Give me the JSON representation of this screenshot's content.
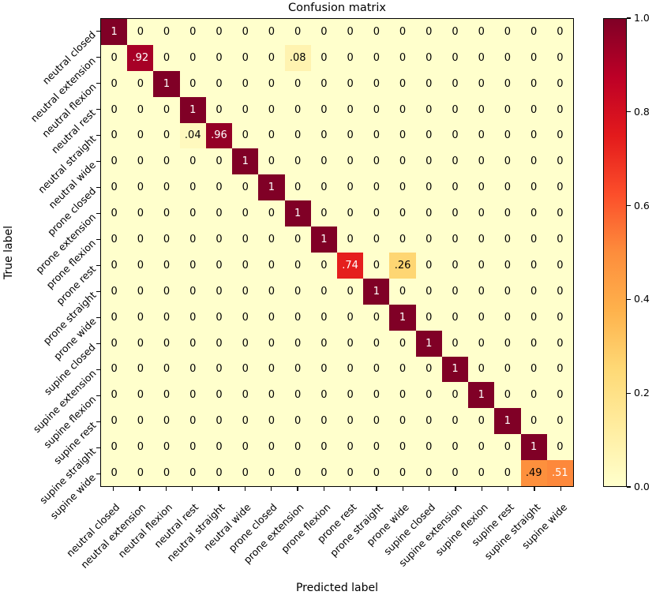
{
  "title": "Confusion matrix",
  "axes": {
    "xlabel": "Predicted label",
    "ylabel": "True label"
  },
  "chart_data": {
    "type": "heatmap",
    "title": "Confusion matrix",
    "xlabel": "Predicted label",
    "ylabel": "True label",
    "legend_position": "colorbar-right",
    "grid": false,
    "vmin": 0,
    "vmax": 1,
    "categories": [
      "neutral closed",
      "neutral extension",
      "neutral flexion",
      "neutral rest",
      "neutral straight",
      "neutral wide",
      "prone closed",
      "prone extension",
      "prone flexion",
      "prone rest",
      "prone straight",
      "prone wide",
      "supine closed",
      "supine extension",
      "supine flexion",
      "supine rest",
      "supine straight",
      "supine wide"
    ],
    "matrix": [
      [
        1,
        0,
        0,
        0,
        0,
        0,
        0,
        0,
        0,
        0,
        0,
        0,
        0,
        0,
        0,
        0,
        0,
        0
      ],
      [
        0,
        0.92,
        0,
        0,
        0,
        0,
        0,
        0.08,
        0,
        0,
        0,
        0,
        0,
        0,
        0,
        0,
        0,
        0
      ],
      [
        0,
        0,
        1,
        0,
        0,
        0,
        0,
        0,
        0,
        0,
        0,
        0,
        0,
        0,
        0,
        0,
        0,
        0
      ],
      [
        0,
        0,
        0,
        1,
        0,
        0,
        0,
        0,
        0,
        0,
        0,
        0,
        0,
        0,
        0,
        0,
        0,
        0
      ],
      [
        0,
        0,
        0,
        0.04,
        0.96,
        0,
        0,
        0,
        0,
        0,
        0,
        0,
        0,
        0,
        0,
        0,
        0,
        0
      ],
      [
        0,
        0,
        0,
        0,
        0,
        1,
        0,
        0,
        0,
        0,
        0,
        0,
        0,
        0,
        0,
        0,
        0,
        0
      ],
      [
        0,
        0,
        0,
        0,
        0,
        0,
        1,
        0,
        0,
        0,
        0,
        0,
        0,
        0,
        0,
        0,
        0,
        0
      ],
      [
        0,
        0,
        0,
        0,
        0,
        0,
        0,
        1,
        0,
        0,
        0,
        0,
        0,
        0,
        0,
        0,
        0,
        0
      ],
      [
        0,
        0,
        0,
        0,
        0,
        0,
        0,
        0,
        1,
        0,
        0,
        0,
        0,
        0,
        0,
        0,
        0,
        0
      ],
      [
        0,
        0,
        0,
        0,
        0,
        0,
        0,
        0,
        0,
        0.74,
        0,
        0.26,
        0,
        0,
        0,
        0,
        0,
        0
      ],
      [
        0,
        0,
        0,
        0,
        0,
        0,
        0,
        0,
        0,
        0,
        1,
        0,
        0,
        0,
        0,
        0,
        0,
        0
      ],
      [
        0,
        0,
        0,
        0,
        0,
        0,
        0,
        0,
        0,
        0,
        0,
        1,
        0,
        0,
        0,
        0,
        0,
        0
      ],
      [
        0,
        0,
        0,
        0,
        0,
        0,
        0,
        0,
        0,
        0,
        0,
        0,
        1,
        0,
        0,
        0,
        0,
        0
      ],
      [
        0,
        0,
        0,
        0,
        0,
        0,
        0,
        0,
        0,
        0,
        0,
        0,
        0,
        1,
        0,
        0,
        0,
        0
      ],
      [
        0,
        0,
        0,
        0,
        0,
        0,
        0,
        0,
        0,
        0,
        0,
        0,
        0,
        0,
        1,
        0,
        0,
        0
      ],
      [
        0,
        0,
        0,
        0,
        0,
        0,
        0,
        0,
        0,
        0,
        0,
        0,
        0,
        0,
        0,
        1,
        0,
        0
      ],
      [
        0,
        0,
        0,
        0,
        0,
        0,
        0,
        0,
        0,
        0,
        0,
        0,
        0,
        0,
        0,
        0,
        1,
        0
      ],
      [
        0,
        0,
        0,
        0,
        0,
        0,
        0,
        0,
        0,
        0,
        0,
        0,
        0,
        0,
        0,
        0,
        0.49,
        0.51
      ]
    ],
    "colormap": {
      "name": "YlOrRd",
      "stops": [
        "#ffffcc",
        "#ffeda0",
        "#fed976",
        "#feb24c",
        "#fd8d3c",
        "#fc4e2a",
        "#e31a1c",
        "#bd0026",
        "#800026"
      ]
    },
    "colorbar_ticks": [
      "1.0",
      "0.8",
      "0.6",
      "0.4",
      "0.2",
      "0.0"
    ],
    "colorbar_tick_values": [
      1.0,
      0.8,
      0.6,
      0.4,
      0.2,
      0.0
    ],
    "cell_text_color_dark": "#000000",
    "cell_text_color_light": "#ffffff",
    "cell_text_threshold": 0.5
  }
}
